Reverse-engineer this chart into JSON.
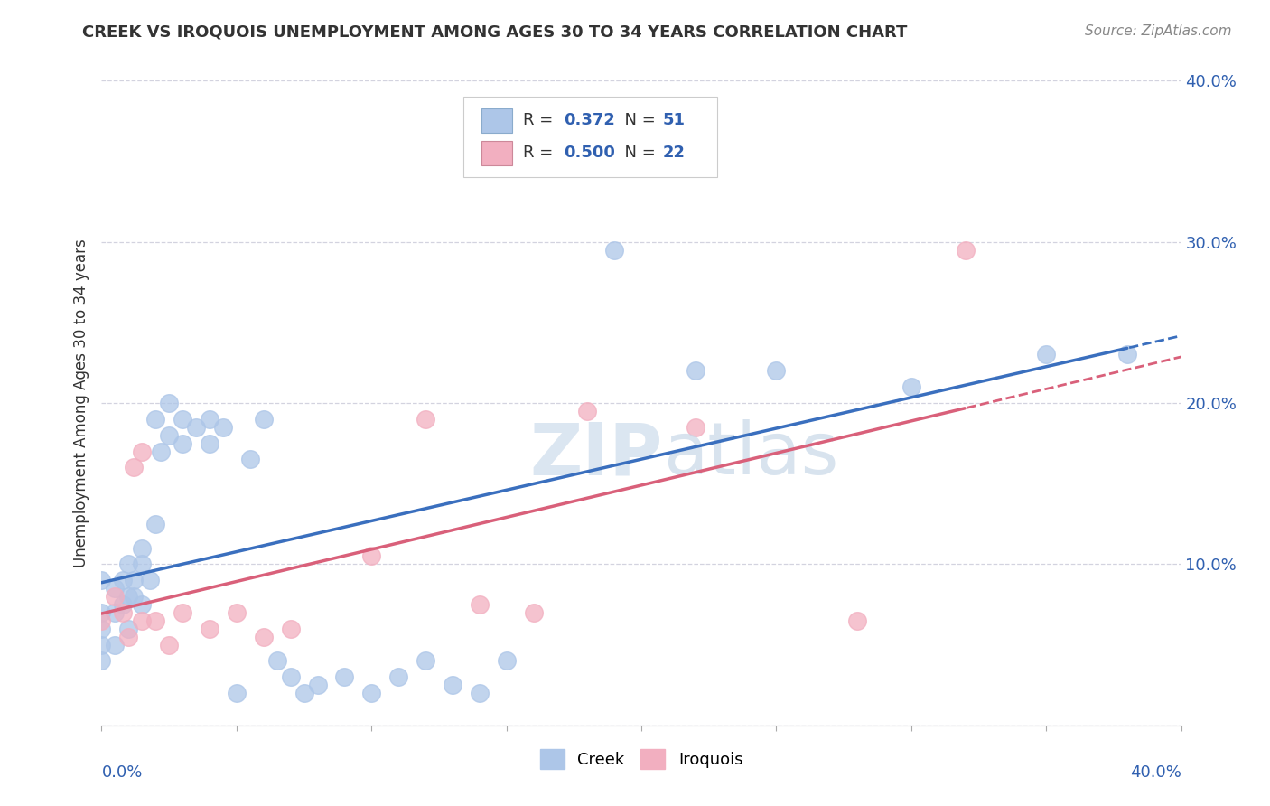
{
  "title": "CREEK VS IROQUOIS UNEMPLOYMENT AMONG AGES 30 TO 34 YEARS CORRELATION CHART",
  "source": "Source: ZipAtlas.com",
  "ylabel": "Unemployment Among Ages 30 to 34 years",
  "creek_R": 0.372,
  "creek_N": 51,
  "iroquois_R": 0.5,
  "iroquois_N": 22,
  "creek_color": "#adc6e8",
  "iroquois_color": "#f2afc0",
  "creek_line_color": "#3a6fbe",
  "iroquois_line_color": "#d9607a",
  "grid_color": "#c8c8d8",
  "xlim": [
    0.0,
    0.4
  ],
  "ylim": [
    0.0,
    0.4
  ],
  "creek_x": [
    0.0,
    0.0,
    0.0,
    0.0,
    0.0,
    0.005,
    0.005,
    0.005,
    0.008,
    0.008,
    0.01,
    0.01,
    0.01,
    0.012,
    0.012,
    0.015,
    0.015,
    0.015,
    0.018,
    0.02,
    0.02,
    0.022,
    0.025,
    0.025,
    0.03,
    0.03,
    0.035,
    0.04,
    0.04,
    0.045,
    0.05,
    0.055,
    0.06,
    0.065,
    0.07,
    0.075,
    0.08,
    0.09,
    0.1,
    0.11,
    0.12,
    0.13,
    0.14,
    0.15,
    0.17,
    0.19,
    0.22,
    0.25,
    0.3,
    0.35,
    0.38
  ],
  "creek_y": [
    0.09,
    0.07,
    0.06,
    0.05,
    0.04,
    0.085,
    0.07,
    0.05,
    0.09,
    0.075,
    0.1,
    0.08,
    0.06,
    0.09,
    0.08,
    0.11,
    0.1,
    0.075,
    0.09,
    0.19,
    0.125,
    0.17,
    0.18,
    0.2,
    0.19,
    0.175,
    0.185,
    0.19,
    0.175,
    0.185,
    0.02,
    0.165,
    0.19,
    0.04,
    0.03,
    0.02,
    0.025,
    0.03,
    0.02,
    0.03,
    0.04,
    0.025,
    0.02,
    0.04,
    0.38,
    0.295,
    0.22,
    0.22,
    0.21,
    0.23,
    0.23
  ],
  "iroquois_x": [
    0.0,
    0.005,
    0.008,
    0.01,
    0.012,
    0.015,
    0.015,
    0.02,
    0.025,
    0.03,
    0.04,
    0.05,
    0.06,
    0.07,
    0.1,
    0.12,
    0.14,
    0.16,
    0.18,
    0.22,
    0.28,
    0.32
  ],
  "iroquois_y": [
    0.065,
    0.08,
    0.07,
    0.055,
    0.16,
    0.17,
    0.065,
    0.065,
    0.05,
    0.07,
    0.06,
    0.07,
    0.055,
    0.06,
    0.105,
    0.19,
    0.075,
    0.07,
    0.195,
    0.185,
    0.065,
    0.295
  ]
}
